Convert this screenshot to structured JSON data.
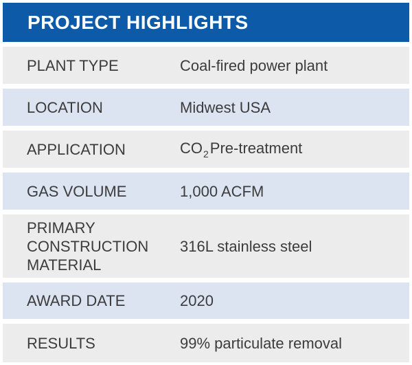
{
  "header": {
    "title": "PROJECT HIGHLIGHTS"
  },
  "colors": {
    "header_bg": "#0d5ba8",
    "row_gray": "#ececec",
    "row_blue": "#dde4f1",
    "text": "#3c3c3c"
  },
  "rows": [
    {
      "label": "PLANT TYPE",
      "value": "Coal-fired power plant"
    },
    {
      "label": "LOCATION",
      "value": "Midwest USA"
    },
    {
      "label": "APPLICATION",
      "value_prefix": "CO",
      "value_sub": "2",
      "value_suffix": "Pre-treatment"
    },
    {
      "label": "GAS VOLUME",
      "value": "1,000 ACFM"
    },
    {
      "label_lines": [
        "PRIMARY",
        "CONSTRUCTION",
        "MATERIAL"
      ],
      "value": "316L stainless steel"
    },
    {
      "label": "AWARD DATE",
      "value": "2020"
    },
    {
      "label": "RESULTS",
      "value": "99% particulate removal"
    }
  ]
}
